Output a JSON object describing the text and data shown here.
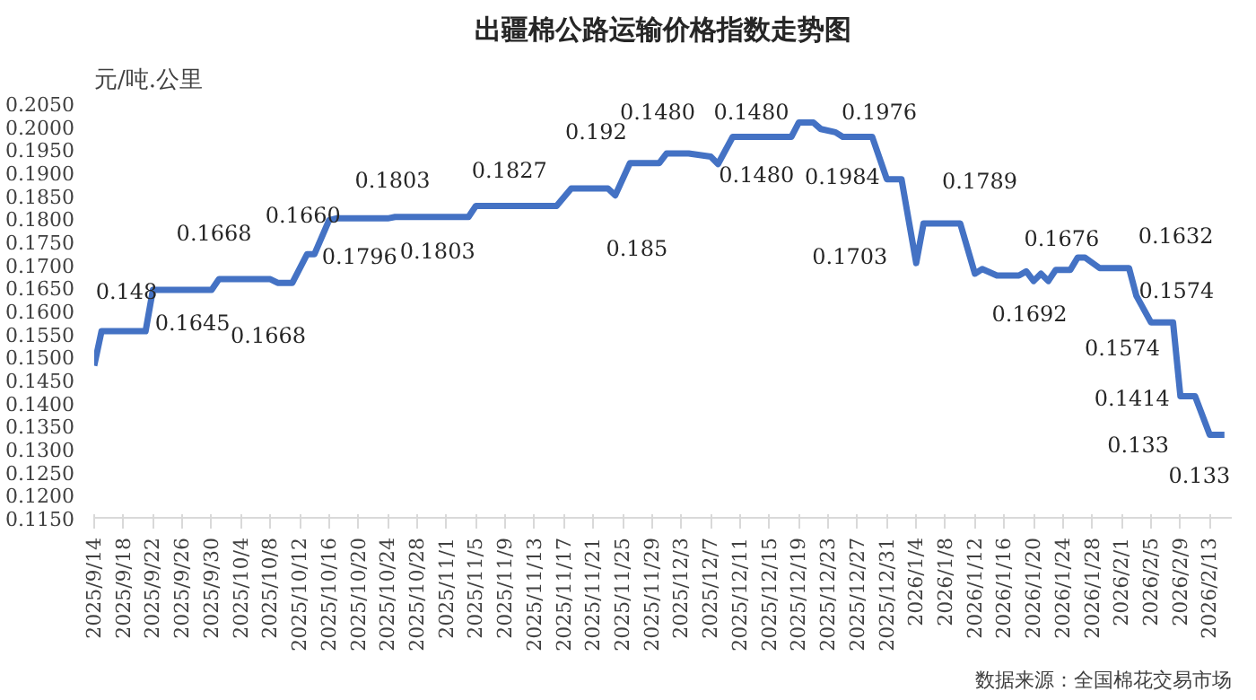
{
  "chart_data": {
    "type": "line",
    "title": "出疆棉公路运输价格指数走势图",
    "ylabel": "元/吨.公里",
    "x": [
      "2025-09-14",
      "2025-09-15",
      "2025-09-21",
      "2025-09-22",
      "2025-09-30",
      "2025-10-01",
      "2025-10-08",
      "2025-10-09",
      "2025-10-11",
      "2025-10-13",
      "2025-10-14",
      "2025-10-16",
      "2025-10-17",
      "2025-10-24",
      "2025-10-25",
      "2025-11-04",
      "2025-11-05",
      "2025-11-16",
      "2025-11-18",
      "2025-11-23",
      "2025-11-24",
      "2025-11-26",
      "2025-11-30",
      "2025-12-01",
      "2025-12-04",
      "2025-12-07",
      "2025-12-08",
      "2025-12-10",
      "2025-12-18",
      "2025-12-19",
      "2025-12-21",
      "2025-12-22",
      "2025-12-24",
      "2025-12-25",
      "2025-12-29",
      "2025-12-31",
      "2026-01-02",
      "2026-01-04",
      "2026-01-05",
      "2026-01-10",
      "2026-01-12",
      "2026-01-13",
      "2026-01-15",
      "2026-01-18",
      "2026-01-19",
      "2026-01-20",
      "2026-01-21",
      "2026-01-22",
      "2026-01-23",
      "2026-01-25",
      "2026-01-26",
      "2026-01-27",
      "2026-01-29",
      "2026-02-02",
      "2026-02-03",
      "2026-02-05",
      "2026-02-08",
      "2026-02-09",
      "2026-02-11",
      "2026-02-13",
      "2026-02-15"
    ],
    "series": [
      {
        "color": "#4472c4",
        "values": [
          0.148,
          0.1555,
          0.1555,
          0.1645,
          0.1645,
          0.1668,
          0.1668,
          0.166,
          0.166,
          0.1722,
          0.1722,
          0.1796,
          0.18,
          0.18,
          0.1803,
          0.1803,
          0.1827,
          0.1827,
          0.1865,
          0.1865,
          0.185,
          0.192,
          0.192,
          0.1941,
          0.1941,
          0.1934,
          0.1918,
          0.1977,
          0.1977,
          0.2008,
          0.2008,
          0.1994,
          0.1987,
          0.1977,
          0.1977,
          0.1885,
          0.1885,
          0.1703,
          0.1789,
          0.1789,
          0.168,
          0.169,
          0.1676,
          0.1676,
          0.1685,
          0.1664,
          0.168,
          0.1664,
          0.1688,
          0.1688,
          0.1715,
          0.1715,
          0.1692,
          0.1692,
          0.1632,
          0.1574,
          0.1574,
          0.1414,
          0.1414,
          0.133,
          0.133
        ]
      }
    ],
    "xlim": [
      "2025-09-14",
      "2026-02-16"
    ],
    "xticks": [
      {
        "value": "2025-09-14",
        "label": "2025/9/14"
      },
      {
        "value": "2025-09-18",
        "label": "2025/9/18"
      },
      {
        "value": "2025-09-22",
        "label": "2025/9/22"
      },
      {
        "value": "2025-09-26",
        "label": "2025/9/26"
      },
      {
        "value": "2025-09-30",
        "label": "2025/9/30"
      },
      {
        "value": "2025-10-04",
        "label": "2025/10/4"
      },
      {
        "value": "2025-10-08",
        "label": "2025/10/8"
      },
      {
        "value": "2025-10-12",
        "label": "2025/10/12"
      },
      {
        "value": "2025-10-16",
        "label": "2025/10/16"
      },
      {
        "value": "2025-10-20",
        "label": "2025/10/20"
      },
      {
        "value": "2025-10-24",
        "label": "2025/10/24"
      },
      {
        "value": "2025-10-28",
        "label": "2025/10/28"
      },
      {
        "value": "2025-11-01",
        "label": "2025/11/1"
      },
      {
        "value": "2025-11-05",
        "label": "2025/11/5"
      },
      {
        "value": "2025-11-09",
        "label": "2025/11/9"
      },
      {
        "value": "2025-11-13",
        "label": "2025/11/13"
      },
      {
        "value": "2025-11-17",
        "label": "2025/11/17"
      },
      {
        "value": "2025-11-21",
        "label": "2025/11/21"
      },
      {
        "value": "2025-11-25",
        "label": "2025/11/25"
      },
      {
        "value": "2025-11-29",
        "label": "2025/11/29"
      },
      {
        "value": "2025-12-03",
        "label": "2025/12/3"
      },
      {
        "value": "2025-12-07",
        "label": "2025/12/7"
      },
      {
        "value": "2025-12-11",
        "label": "2025/12/11"
      },
      {
        "value": "2025-12-15",
        "label": "2025/12/15"
      },
      {
        "value": "2025-12-19",
        "label": "2025/12/19"
      },
      {
        "value": "2025-12-23",
        "label": "2025/12/23"
      },
      {
        "value": "2025-12-27",
        "label": "2025/12/27"
      },
      {
        "value": "2025-12-31",
        "label": "2025/12/31"
      },
      {
        "value": "2026-01-04",
        "label": "2026/1/4"
      },
      {
        "value": "2026-01-08",
        "label": "2026/1/8"
      },
      {
        "value": "2026-01-12",
        "label": "2026/1/12"
      },
      {
        "value": "2026-01-16",
        "label": "2026/1/16"
      },
      {
        "value": "2026-01-20",
        "label": "2026/1/20"
      },
      {
        "value": "2026-01-24",
        "label": "2026/1/24"
      },
      {
        "value": "2026-01-28",
        "label": "2026/1/28"
      },
      {
        "value": "2026-02-01",
        "label": "2026/2/1"
      },
      {
        "value": "2026-02-05",
        "label": "2026/2/5"
      },
      {
        "value": "2026-02-09",
        "label": "2026/2/9"
      },
      {
        "value": "2026-02-13",
        "label": "2026/2/13"
      }
    ],
    "ylim": [
      0.115,
      0.205
    ],
    "yticks": [
      {
        "value": 0.115,
        "label": "0.1150"
      },
      {
        "value": 0.12,
        "label": "0.1200"
      },
      {
        "value": 0.125,
        "label": "0.1250"
      },
      {
        "value": 0.13,
        "label": "0.1300"
      },
      {
        "value": 0.135,
        "label": "0.1350"
      },
      {
        "value": 0.14,
        "label": "0.1400"
      },
      {
        "value": 0.145,
        "label": "0.1450"
      },
      {
        "value": 0.15,
        "label": "0.1500"
      },
      {
        "value": 0.155,
        "label": "0.1550"
      },
      {
        "value": 0.16,
        "label": "0.1600"
      },
      {
        "value": 0.165,
        "label": "0.1650"
      },
      {
        "value": 0.17,
        "label": "0.1700"
      },
      {
        "value": 0.175,
        "label": "0.1750"
      },
      {
        "value": 0.18,
        "label": "0.1800"
      },
      {
        "value": 0.185,
        "label": "0.1850"
      },
      {
        "value": 0.19,
        "label": "0.1900"
      },
      {
        "value": 0.195,
        "label": "0.1950"
      },
      {
        "value": 0.2,
        "label": "0.2000"
      },
      {
        "value": 0.205,
        "label": "0.2050"
      }
    ],
    "grid": false,
    "marker": "none",
    "line_style": "solid",
    "annotations": [
      {
        "text": "0.148",
        "x": "2025-09-14",
        "y": 0.148
      },
      {
        "text": "0.1645",
        "x": "2025-09-23",
        "y": 0.1645
      },
      {
        "text": "0.1668",
        "x": "2025-10-04",
        "y": 0.1668
      },
      {
        "text": "0.1668",
        "x": "2025-10-06",
        "y": 0.1668
      },
      {
        "text": "0.1660",
        "x": "2025-10-10",
        "y": 0.166
      },
      {
        "text": "0.1796",
        "x": "2025-10-16",
        "y": 0.1796
      },
      {
        "text": "0.1803",
        "x": "2025-10-31",
        "y": 0.1803
      },
      {
        "text": "0.1803",
        "x": "2025-10-21",
        "y": 0.18
      },
      {
        "text": "0.1827",
        "x": "2025-11-13",
        "y": 0.1827
      },
      {
        "text": "0.192",
        "x": "2025-11-27",
        "y": 0.192
      },
      {
        "text": "0.185",
        "x": "2025-11-24",
        "y": 0.185
      },
      {
        "text": "0.1480",
        "x": "2025-12-12",
        "y": 0.1977
      },
      {
        "text": "0.1480",
        "x": "2025-12-14",
        "y": 0.1977
      },
      {
        "text": "0.1480",
        "x": "2025-12-13",
        "y": 0.1977
      },
      {
        "text": "0.1976",
        "x": "2025-12-28",
        "y": 0.1977
      },
      {
        "text": "0.1984",
        "x": "2025-12-22",
        "y": 0.1994
      },
      {
        "text": "0.1703",
        "x": "2026-01-04",
        "y": 0.1703
      },
      {
        "text": "0.1789",
        "x": "2026-01-08",
        "y": 0.1789
      },
      {
        "text": "0.1676",
        "x": "2026-01-16",
        "y": 0.1676
      },
      {
        "text": "0.1692",
        "x": "2026-01-28",
        "y": 0.1692
      },
      {
        "text": "0.1632",
        "x": "2026-02-03",
        "y": 0.1632
      },
      {
        "text": "0.1574",
        "x": "2026-02-07",
        "y": 0.1574
      },
      {
        "text": "0.1574",
        "x": "2026-02-05",
        "y": 0.1574
      },
      {
        "text": "0.1414",
        "x": "2026-02-09",
        "y": 0.1414
      },
      {
        "text": "0.133",
        "x": "2026-02-14",
        "y": 0.133
      },
      {
        "text": "0.133",
        "x": "2026-02-15",
        "y": 0.133
      },
      "数据来源：全国棉花交易市场"
    ]
  }
}
